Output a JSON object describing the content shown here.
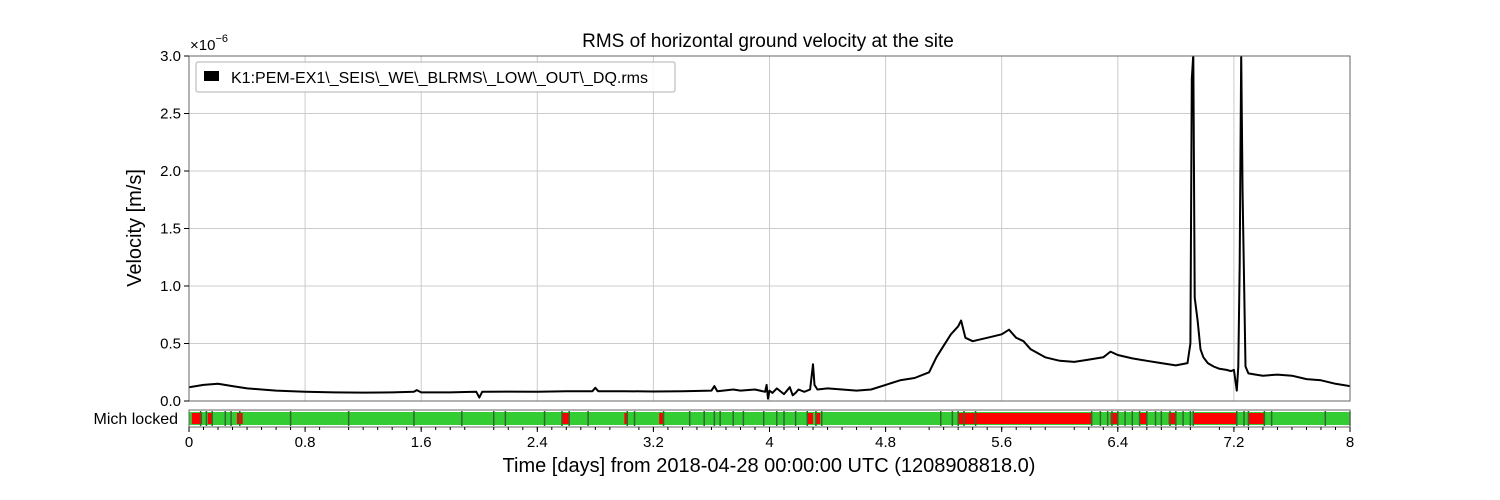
{
  "chart_data": [
    {
      "type": "line",
      "title": "RMS of horizontal ground velocity at the site",
      "xlabel": "Time [days] from 2018-04-28 00:00:00 UTC (1208908818.0)",
      "ylabel": "Velocity [m/s]",
      "y_multiplier_base": "×10",
      "y_multiplier_exponent": "−6",
      "xlim": [
        0,
        8
      ],
      "ylim": [
        0,
        3.0
      ],
      "grid": true,
      "legend_position": "top-left",
      "xticks": [
        "0",
        "0.8",
        "1.6",
        "2.4",
        "3.2",
        "4",
        "4.8",
        "5.6",
        "6.4",
        "7.2",
        "8"
      ],
      "xtick_values": [
        0,
        0.8,
        1.6,
        2.4,
        3.2,
        4.0,
        4.8,
        5.6,
        6.4,
        7.2,
        8.0
      ],
      "yticks": [
        "0.0",
        "0.5",
        "1.0",
        "1.5",
        "2.0",
        "2.5",
        "3.0"
      ],
      "ytick_values": [
        0,
        0.5,
        1.0,
        1.5,
        2.0,
        2.5,
        3.0
      ],
      "series": [
        {
          "name": "K1:PEM-EX1\\_SEIS\\_WE\\_BLRMS\\_LOW\\_OUT\\_DQ.rms",
          "color": "#000000",
          "x": [
            0,
            0.1,
            0.2,
            0.3,
            0.4,
            0.5,
            0.6,
            0.8,
            1.0,
            1.2,
            1.4,
            1.55,
            1.57,
            1.6,
            1.8,
            1.9,
            1.98,
            2.0,
            2.02,
            2.05,
            2.2,
            2.4,
            2.6,
            2.78,
            2.8,
            2.82,
            3.0,
            3.2,
            3.4,
            3.6,
            3.62,
            3.64,
            3.68,
            3.75,
            3.8,
            3.9,
            3.97,
            3.98,
            3.99,
            4.0,
            4.02,
            4.05,
            4.1,
            4.14,
            4.16,
            4.18,
            4.2,
            4.24,
            4.28,
            4.3,
            4.31,
            4.33,
            4.4,
            4.5,
            4.6,
            4.7,
            4.8,
            4.9,
            5.0,
            5.1,
            5.15,
            5.2,
            5.25,
            5.3,
            5.32,
            5.35,
            5.4,
            5.5,
            5.6,
            5.65,
            5.7,
            5.75,
            5.8,
            5.9,
            6.0,
            6.1,
            6.2,
            6.3,
            6.35,
            6.4,
            6.5,
            6.6,
            6.7,
            6.8,
            6.88,
            6.9,
            6.91,
            6.92,
            6.93,
            6.95,
            6.97,
            6.99,
            7.02,
            7.06,
            7.1,
            7.15,
            7.18,
            7.2,
            7.22,
            7.23,
            7.24,
            7.25,
            7.26,
            7.28,
            7.3,
            7.35,
            7.4,
            7.5,
            7.6,
            7.7,
            7.8,
            7.9,
            8.0
          ],
          "y": [
            0.12,
            0.14,
            0.15,
            0.13,
            0.11,
            0.1,
            0.09,
            0.08,
            0.075,
            0.073,
            0.075,
            0.08,
            0.095,
            0.075,
            0.075,
            0.078,
            0.08,
            0.03,
            0.08,
            0.08,
            0.082,
            0.08,
            0.085,
            0.085,
            0.115,
            0.085,
            0.085,
            0.083,
            0.085,
            0.09,
            0.13,
            0.085,
            0.09,
            0.1,
            0.09,
            0.1,
            0.08,
            0.14,
            0.02,
            0.09,
            0.07,
            0.11,
            0.06,
            0.12,
            0.05,
            0.07,
            0.1,
            0.08,
            0.1,
            0.32,
            0.14,
            0.1,
            0.11,
            0.1,
            0.09,
            0.1,
            0.14,
            0.18,
            0.2,
            0.25,
            0.38,
            0.48,
            0.58,
            0.65,
            0.7,
            0.55,
            0.52,
            0.55,
            0.58,
            0.62,
            0.55,
            0.52,
            0.45,
            0.38,
            0.35,
            0.34,
            0.36,
            0.38,
            0.43,
            0.4,
            0.37,
            0.35,
            0.33,
            0.31,
            0.33,
            0.5,
            2.8,
            3.2,
            0.9,
            0.7,
            0.45,
            0.38,
            0.33,
            0.3,
            0.28,
            0.27,
            0.26,
            0.27,
            0.09,
            0.3,
            1.2,
            3.2,
            1.8,
            0.3,
            0.24,
            0.23,
            0.22,
            0.23,
            0.22,
            0.19,
            0.18,
            0.15,
            0.13
          ]
        }
      ]
    },
    {
      "type": "state-segments",
      "label": "Mich locked",
      "xlim": [
        0,
        8
      ],
      "colors": {
        "on": "#33cc33",
        "off": "#ff0000",
        "edge": "#2d6a2d"
      },
      "off_segments": [
        [
          0.02,
          0.09
        ],
        [
          0.13,
          0.16
        ],
        [
          0.33,
          0.37
        ],
        [
          2.57,
          2.62
        ],
        [
          3.0,
          3.02
        ],
        [
          3.24,
          3.27
        ],
        [
          4.26,
          4.3
        ],
        [
          4.32,
          4.35
        ],
        [
          5.3,
          6.22
        ],
        [
          6.35,
          6.4
        ],
        [
          6.55,
          6.6
        ],
        [
          6.75,
          6.8
        ],
        [
          6.92,
          7.22
        ],
        [
          7.3,
          7.41
        ]
      ],
      "edge_marks": [
        0.08,
        0.12,
        0.16,
        0.25,
        0.29,
        0.35,
        0.7,
        1.1,
        1.55,
        1.88,
        2.1,
        2.18,
        2.45,
        2.57,
        2.62,
        2.75,
        3.02,
        3.07,
        3.27,
        3.45,
        3.55,
        3.62,
        3.66,
        3.75,
        3.82,
        3.96,
        4.05,
        4.1,
        4.18,
        4.26,
        4.32,
        4.36,
        5.18,
        5.26,
        5.3,
        5.34,
        5.42,
        6.22,
        6.28,
        6.33,
        6.36,
        6.4,
        6.45,
        6.5,
        6.55,
        6.6,
        6.66,
        6.7,
        6.76,
        6.8,
        6.85,
        6.9,
        6.92,
        7.22,
        7.27,
        7.3,
        7.41,
        7.46,
        7.83,
        8.0
      ]
    }
  ]
}
